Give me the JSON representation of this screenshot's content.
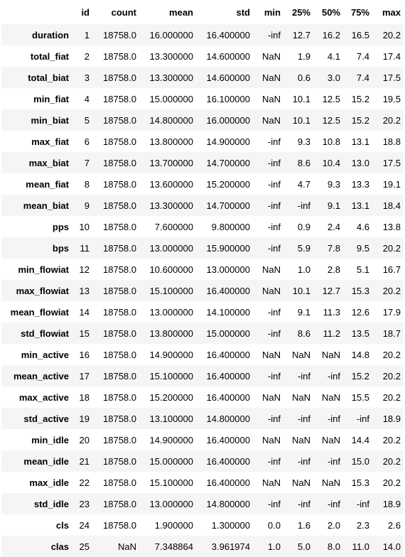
{
  "table": {
    "columns": [
      "",
      "id",
      "count",
      "mean",
      "std",
      "min",
      "25%",
      "50%",
      "75%",
      "max"
    ],
    "rows": [
      {
        "label": "duration",
        "cells": [
          "1",
          "18758.0",
          "16.000000",
          "16.400000",
          "-inf",
          "12.7",
          "16.2",
          "16.5",
          "20.2"
        ]
      },
      {
        "label": "total_fiat",
        "cells": [
          "2",
          "18758.0",
          "13.300000",
          "14.600000",
          "NaN",
          "1.9",
          "4.1",
          "7.4",
          "17.4"
        ]
      },
      {
        "label": "total_biat",
        "cells": [
          "3",
          "18758.0",
          "13.300000",
          "14.600000",
          "NaN",
          "0.6",
          "3.0",
          "7.4",
          "17.5"
        ]
      },
      {
        "label": "min_fiat",
        "cells": [
          "4",
          "18758.0",
          "15.000000",
          "16.100000",
          "NaN",
          "10.1",
          "12.5",
          "15.2",
          "19.5"
        ]
      },
      {
        "label": "min_biat",
        "cells": [
          "5",
          "18758.0",
          "14.800000",
          "16.000000",
          "NaN",
          "10.1",
          "12.5",
          "15.2",
          "20.2"
        ]
      },
      {
        "label": "max_fiat",
        "cells": [
          "6",
          "18758.0",
          "13.800000",
          "14.900000",
          "-inf",
          "9.3",
          "10.8",
          "13.1",
          "18.8"
        ]
      },
      {
        "label": "max_biat",
        "cells": [
          "7",
          "18758.0",
          "13.700000",
          "14.700000",
          "-inf",
          "8.6",
          "10.4",
          "13.0",
          "17.5"
        ]
      },
      {
        "label": "mean_fiat",
        "cells": [
          "8",
          "18758.0",
          "13.600000",
          "15.200000",
          "-inf",
          "4.7",
          "9.3",
          "13.3",
          "19.1"
        ]
      },
      {
        "label": "mean_biat",
        "cells": [
          "9",
          "18758.0",
          "13.300000",
          "14.700000",
          "-inf",
          "-inf",
          "9.1",
          "13.1",
          "18.4"
        ]
      },
      {
        "label": "pps",
        "cells": [
          "10",
          "18758.0",
          "7.600000",
          "9.800000",
          "-inf",
          "0.9",
          "2.4",
          "4.6",
          "13.8"
        ]
      },
      {
        "label": "bps",
        "cells": [
          "11",
          "18758.0",
          "13.000000",
          "15.900000",
          "-inf",
          "5.9",
          "7.8",
          "9.5",
          "20.2"
        ]
      },
      {
        "label": "min_flowiat",
        "cells": [
          "12",
          "18758.0",
          "10.600000",
          "13.000000",
          "NaN",
          "1.0",
          "2.8",
          "5.1",
          "16.7"
        ]
      },
      {
        "label": "max_flowiat",
        "cells": [
          "13",
          "18758.0",
          "15.100000",
          "16.400000",
          "NaN",
          "10.1",
          "12.7",
          "15.3",
          "20.2"
        ]
      },
      {
        "label": "mean_flowiat",
        "cells": [
          "14",
          "18758.0",
          "13.000000",
          "14.100000",
          "-inf",
          "9.1",
          "11.3",
          "12.6",
          "17.9"
        ]
      },
      {
        "label": "std_flowiat",
        "cells": [
          "15",
          "18758.0",
          "13.800000",
          "15.000000",
          "-inf",
          "8.6",
          "11.2",
          "13.5",
          "18.7"
        ]
      },
      {
        "label": "min_active",
        "cells": [
          "16",
          "18758.0",
          "14.900000",
          "16.400000",
          "NaN",
          "NaN",
          "NaN",
          "14.8",
          "20.2"
        ]
      },
      {
        "label": "mean_active",
        "cells": [
          "17",
          "18758.0",
          "15.100000",
          "16.400000",
          "-inf",
          "-inf",
          "-inf",
          "15.2",
          "20.2"
        ]
      },
      {
        "label": "max_active",
        "cells": [
          "18",
          "18758.0",
          "15.200000",
          "16.400000",
          "NaN",
          "NaN",
          "NaN",
          "15.5",
          "20.2"
        ]
      },
      {
        "label": "std_active",
        "cells": [
          "19",
          "18758.0",
          "13.100000",
          "14.800000",
          "-inf",
          "-inf",
          "-inf",
          "-inf",
          "18.9"
        ]
      },
      {
        "label": "min_idle",
        "cells": [
          "20",
          "18758.0",
          "14.900000",
          "16.400000",
          "NaN",
          "NaN",
          "NaN",
          "14.4",
          "20.2"
        ]
      },
      {
        "label": "mean_idle",
        "cells": [
          "21",
          "18758.0",
          "15.000000",
          "16.400000",
          "-inf",
          "-inf",
          "-inf",
          "15.0",
          "20.2"
        ]
      },
      {
        "label": "max_idle",
        "cells": [
          "22",
          "18758.0",
          "15.100000",
          "16.400000",
          "NaN",
          "NaN",
          "NaN",
          "15.3",
          "20.2"
        ]
      },
      {
        "label": "std_idle",
        "cells": [
          "23",
          "18758.0",
          "13.000000",
          "14.800000",
          "-inf",
          "-inf",
          "-inf",
          "-inf",
          "18.9"
        ]
      },
      {
        "label": "cls",
        "cells": [
          "24",
          "18758.0",
          "1.900000",
          "1.300000",
          "0.0",
          "1.6",
          "2.0",
          "2.3",
          "2.6"
        ]
      },
      {
        "label": "clas",
        "cells": [
          "25",
          "NaN",
          "7.348864",
          "3.961974",
          "1.0",
          "5.0",
          "8.0",
          "11.0",
          "14.0"
        ]
      }
    ]
  }
}
